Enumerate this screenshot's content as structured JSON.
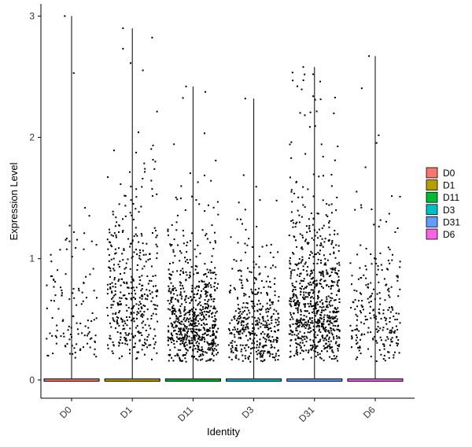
{
  "chart_data": {
    "type": "violin-scatter",
    "xlabel": "Identity",
    "ylabel": "Expression Level",
    "categories": [
      "D0",
      "D1",
      "D11",
      "D3",
      "D31",
      "D6"
    ],
    "ylim": [
      -0.15,
      3.1
    ],
    "yticks": [
      0,
      1,
      2,
      3
    ],
    "ytick_labels": [
      "0",
      "1",
      "2",
      "3"
    ],
    "grid": false,
    "legend_position": "right",
    "series": [
      {
        "name": "D0",
        "color": "#F8766D",
        "max": 3.0,
        "n_points": 120,
        "median_nonzero": 0.55
      },
      {
        "name": "D1",
        "color": "#B79F00",
        "max": 2.9,
        "n_points": 420,
        "median_nonzero": 0.7
      },
      {
        "name": "D11",
        "color": "#00BA38",
        "max": 2.42,
        "n_points": 680,
        "median_nonzero": 0.5
      },
      {
        "name": "D3",
        "color": "#00BFC4",
        "max": 2.32,
        "n_points": 420,
        "median_nonzero": 0.45
      },
      {
        "name": "D31",
        "color": "#619CFF",
        "max": 2.58,
        "n_points": 760,
        "median_nonzero": 0.62
      },
      {
        "name": "D6",
        "color": "#F564E3",
        "max": 2.67,
        "n_points": 240,
        "median_nonzero": 0.52
      }
    ]
  }
}
